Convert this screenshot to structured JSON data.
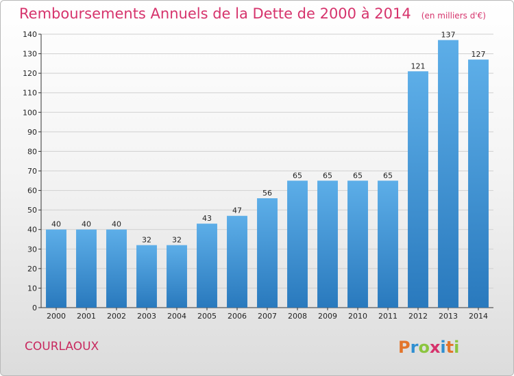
{
  "title": "Remboursements Annuels de la Dette de 2000 à 2014",
  "unit_note": "(en milliers d'€)",
  "commune": "COURLAOUX",
  "brand": {
    "letters": [
      "P",
      "r",
      "o",
      "x",
      "i",
      "t",
      "i"
    ],
    "colors": [
      "#e3752b",
      "#2f8fd1",
      "#8bc53f",
      "#d6336c",
      "#2f8fd1",
      "#e3752b",
      "#8bc53f"
    ]
  },
  "colors": {
    "bar_top": "#5daee8",
    "bar_bottom": "#2979bd",
    "grid": "#cfcfcf",
    "title": "#d6336c"
  },
  "chart_data": {
    "type": "bar",
    "title": "Remboursements Annuels de la Dette de 2000 à 2014",
    "subtitle": "(en milliers d'€)",
    "xlabel": "",
    "ylabel": "",
    "categories": [
      "2000",
      "2001",
      "2002",
      "2003",
      "2004",
      "2005",
      "2006",
      "2007",
      "2008",
      "2009",
      "2010",
      "2011",
      "2012",
      "2013",
      "2014"
    ],
    "values": [
      40,
      40,
      40,
      32,
      32,
      43,
      47,
      56,
      65,
      65,
      65,
      65,
      121,
      137,
      127
    ],
    "ylim": [
      0,
      140
    ],
    "yticks": [
      0,
      10,
      20,
      30,
      40,
      50,
      60,
      70,
      80,
      90,
      100,
      110,
      120,
      130,
      140
    ],
    "grid": true,
    "legend": "none"
  }
}
